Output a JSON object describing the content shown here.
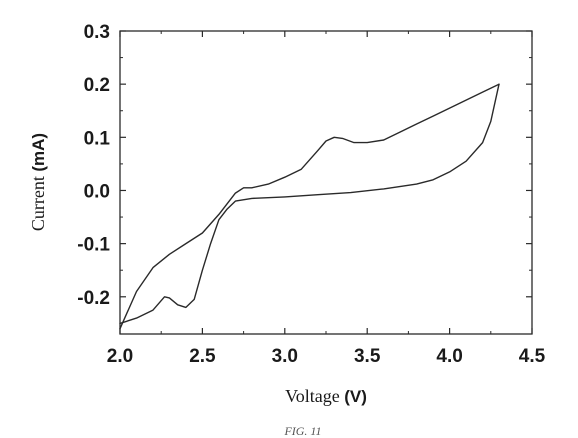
{
  "chart_data": {
    "type": "line",
    "xlabel_text": "Voltage ",
    "xlabel_unit": "(V)",
    "ylabel_text": "Current ",
    "ylabel_unit": "(mA)",
    "xlim": [
      2.0,
      4.5
    ],
    "ylim": [
      -0.27,
      0.3
    ],
    "x_ticks": [
      2.0,
      2.5,
      3.0,
      3.5,
      4.0,
      4.5
    ],
    "x_tick_labels": [
      "2.0",
      "2.5",
      "3.0",
      "3.5",
      "4.0",
      "4.5"
    ],
    "y_ticks": [
      -0.2,
      -0.1,
      0.0,
      0.1,
      0.2,
      0.3
    ],
    "y_tick_labels": [
      "-0.2",
      "-0.1",
      "0.0",
      "0.1",
      "0.2",
      "0.3"
    ],
    "grid": false,
    "line_color": "#2a2a2a",
    "series": [
      {
        "x": [
          2.0,
          2.1,
          2.2,
          2.27,
          2.3,
          2.35,
          2.4,
          2.45,
          2.5,
          2.55,
          2.6,
          2.65,
          2.7,
          2.8,
          3.0,
          3.2,
          3.4,
          3.6,
          3.8,
          3.9,
          4.0,
          4.1,
          4.2,
          4.25,
          4.3
        ],
        "y": [
          -0.25,
          -0.24,
          -0.225,
          -0.2,
          -0.202,
          -0.215,
          -0.22,
          -0.205,
          -0.15,
          -0.1,
          -0.055,
          -0.035,
          -0.02,
          -0.015,
          -0.012,
          -0.008,
          -0.004,
          0.003,
          0.012,
          0.02,
          0.035,
          0.055,
          0.09,
          0.13,
          0.2
        ]
      },
      {
        "x": [
          4.3,
          4.2,
          4.1,
          4.0,
          3.9,
          3.8,
          3.7,
          3.6,
          3.5,
          3.42,
          3.35,
          3.3,
          3.25,
          3.2,
          3.1,
          3.0,
          2.9,
          2.8,
          2.75,
          2.7,
          2.6,
          2.5,
          2.4,
          2.3,
          2.2,
          2.1,
          2.0
        ],
        "y": [
          0.2,
          0.185,
          0.17,
          0.155,
          0.14,
          0.125,
          0.11,
          0.095,
          0.09,
          0.09,
          0.098,
          0.1,
          0.093,
          0.075,
          0.04,
          0.025,
          0.012,
          0.005,
          0.005,
          -0.005,
          -0.045,
          -0.08,
          -0.1,
          -0.12,
          -0.145,
          -0.19,
          -0.26
        ]
      }
    ]
  },
  "caption": "FIG. 11"
}
